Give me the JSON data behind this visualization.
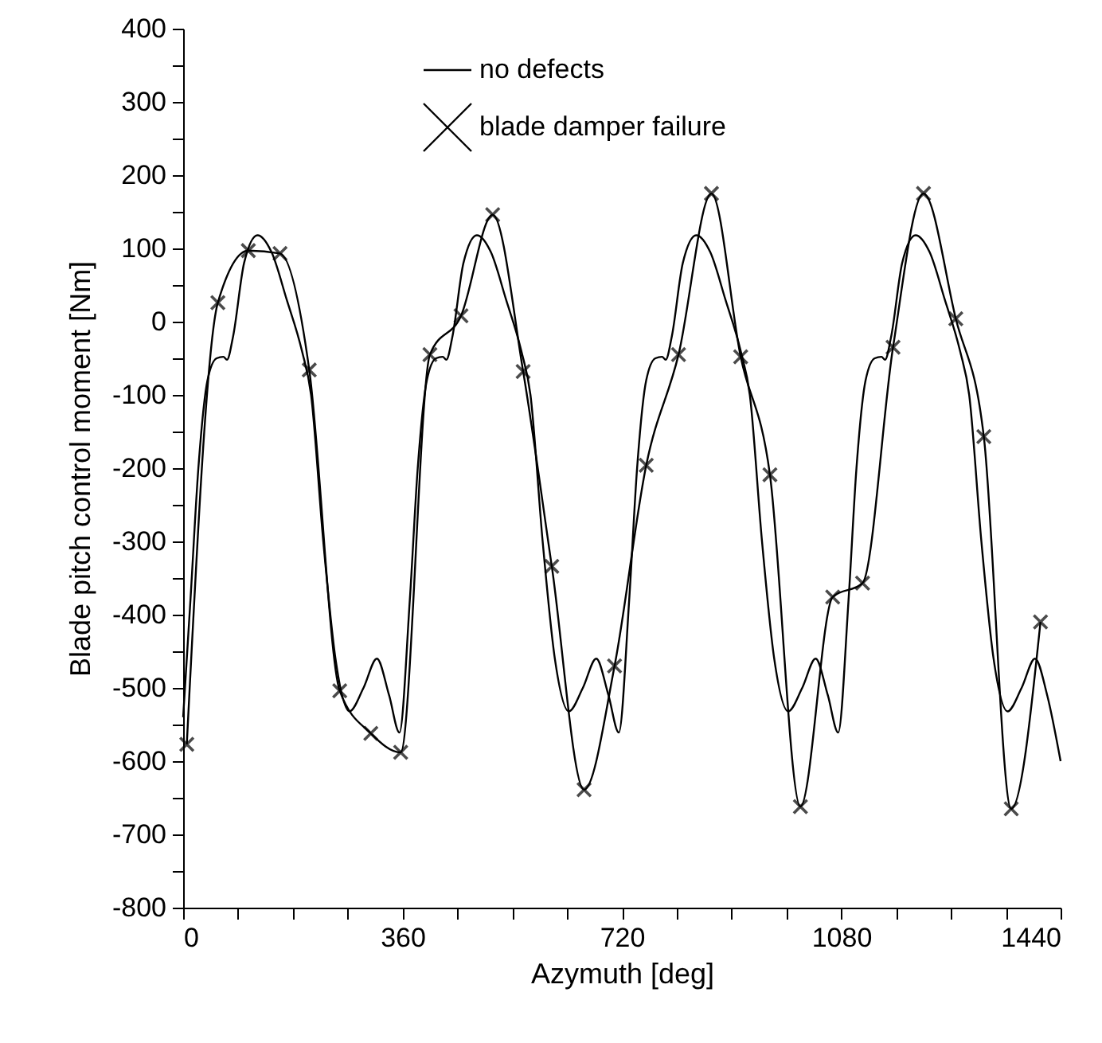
{
  "chart_data": {
    "type": "line",
    "xlabel": "Azymuth [deg]",
    "ylabel": "Blade pitch control moment  [Nm]",
    "xlim": [
      0,
      1440
    ],
    "ylim": [
      -800,
      400
    ],
    "xticks": [
      0,
      {
        "value": 90,
        "label": null
      },
      {
        "value": 180,
        "label": null
      },
      {
        "value": 270,
        "label": null
      },
      360,
      {
        "value": 450,
        "label": null
      },
      {
        "value": 540,
        "label": null
      },
      {
        "value": 630,
        "label": null
      },
      720,
      {
        "value": 810,
        "label": null
      },
      {
        "value": 900,
        "label": null
      },
      {
        "value": 990,
        "label": null
      },
      1080,
      {
        "value": 1170,
        "label": null
      },
      {
        "value": 1260,
        "label": null
      },
      {
        "value": 1350,
        "label": null
      },
      1440
    ],
    "yticks": [
      -800,
      {
        "value": -750,
        "label": null
      },
      -700,
      {
        "value": -650,
        "label": null
      },
      -600,
      {
        "value": -550,
        "label": null
      },
      -500,
      {
        "value": -450,
        "label": null
      },
      -400,
      {
        "value": -350,
        "label": null
      },
      -300,
      {
        "value": -250,
        "label": null
      },
      -200,
      {
        "value": -150,
        "label": null
      },
      -100,
      {
        "value": -50,
        "label": null
      },
      0,
      {
        "value": 50,
        "label": null
      },
      100,
      {
        "value": 150,
        "label": null
      },
      200,
      {
        "value": 250,
        "label": null
      },
      300,
      {
        "value": 350,
        "label": null
      },
      400
    ],
    "grid": false,
    "legend": "top",
    "line_style": "solid",
    "series": [
      {
        "name": "no defects",
        "color": "#000000",
        "marker": "none",
        "x": [
          0,
          12,
          25,
          40,
          55,
          66,
          72,
          82,
          100,
          122,
          145,
          170,
          195,
          210,
          230,
          250,
          273,
          296,
          318,
          338,
          355,
          372,
          385,
          400,
          415,
          426,
          432,
          442,
          460,
          482,
          505,
          530,
          555,
          570,
          590,
          610,
          633,
          656,
          678,
          698,
          715,
          732,
          745,
          760,
          775,
          786,
          792,
          802,
          820,
          842,
          865,
          890,
          915,
          930,
          950,
          970,
          993,
          1016,
          1038,
          1058,
          1075,
          1092,
          1105,
          1120,
          1135,
          1146,
          1152,
          1162,
          1180,
          1202,
          1225,
          1250,
          1275,
          1290,
          1310,
          1330,
          1353,
          1376,
          1398,
          1418,
          1440
        ],
        "values": [
          -540,
          -380,
          -200,
          -80,
          -50,
          -48,
          -52,
          -20,
          80,
          118,
          95,
          30,
          -40,
          -100,
          -300,
          -460,
          -532,
          -500,
          -460,
          -510,
          -561,
          -380,
          -200,
          -80,
          -50,
          -48,
          -52,
          -20,
          80,
          118,
          95,
          30,
          -40,
          -100,
          -300,
          -460,
          -532,
          -500,
          -460,
          -510,
          -561,
          -380,
          -200,
          -80,
          -50,
          -48,
          -52,
          -20,
          80,
          118,
          95,
          30,
          -40,
          -100,
          -300,
          -460,
          -532,
          -500,
          -460,
          -510,
          -561,
          -380,
          -200,
          -80,
          -50,
          -48,
          -52,
          -20,
          80,
          118,
          95,
          30,
          -40,
          -100,
          -300,
          -460,
          -532,
          -500,
          -460,
          -510,
          -600
        ]
      },
      {
        "name": "blade damper failure",
        "color": "#000000",
        "marker": "cross",
        "x": [
          6,
          57,
          107,
          159,
          207,
          257,
          308,
          357,
          405,
          456,
          508,
          558,
          605,
          658,
          708,
          760,
          813,
          867,
          915,
          963,
          1013,
          1066,
          1115,
          1165,
          1215,
          1268,
          1314,
          1359,
          1407
        ],
        "values": [
          -577,
          26,
          97,
          93,
          -66,
          -504,
          -562,
          -588,
          -45,
          8,
          146,
          -68,
          -334,
          -639,
          -470,
          -196,
          -45,
          175,
          -48,
          -209,
          -662,
          -376,
          -357,
          -35,
          175,
          4,
          -157,
          -665,
          -410
        ]
      }
    ]
  }
}
